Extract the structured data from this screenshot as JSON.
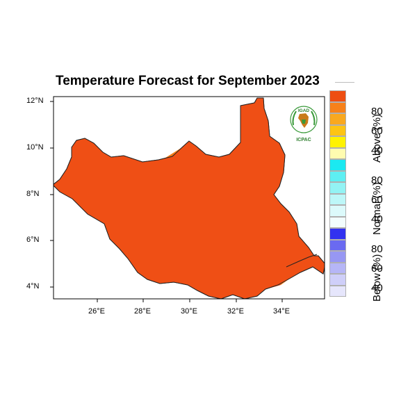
{
  "title": "Temperature Forecast for September 2023",
  "lat_ticks": [
    "12°N",
    "10°N",
    "8°N",
    "6°N",
    "4°N"
  ],
  "lon_ticks": [
    "26°E",
    "28°E",
    "30°E",
    "32°E",
    "34°E"
  ],
  "legend": {
    "above": {
      "label": "Above (%)",
      "values": [
        "80",
        "60",
        "40"
      ],
      "colors": [
        "#ee4e12",
        "#f7811a",
        "#f9a81f",
        "#fdc414",
        "#fff200",
        "#fffcb0"
      ]
    },
    "normal": {
      "label": "Normal (%)",
      "values": [
        "80",
        "60",
        "40"
      ],
      "colors": [
        "#1be9f1",
        "#5eeff2",
        "#93f3f4",
        "#bdf7f8",
        "#dcfafb",
        "#f2fdfd"
      ]
    },
    "below": {
      "label": "Below (%)",
      "values": [
        "80",
        "60",
        "40"
      ],
      "colors": [
        "#3232f0",
        "#6a6af1",
        "#9797f3",
        "#b6b6f6",
        "#cfcff9",
        "#e6e6fc"
      ]
    }
  },
  "logo": {
    "top_text": "IGAD",
    "bottom_text": "ICPAC",
    "icon": "icpac-laurel-africa-icon"
  },
  "colors": {
    "dark_red": "#e2300f",
    "red_orange": "#ef4f15",
    "orange": "#f57c17"
  }
}
